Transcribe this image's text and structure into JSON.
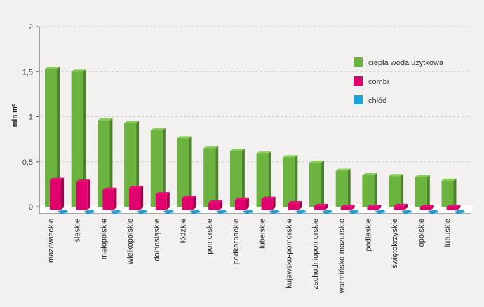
{
  "chart_data": {
    "type": "bar",
    "ylabel": "mln m²",
    "ylim": [
      0,
      2
    ],
    "yticks": [
      "0",
      "0,5",
      "1",
      "1,5",
      "2"
    ],
    "grid": true,
    "legend_position": "right",
    "categories": [
      "mazowieckie",
      "śląskie",
      "małopolskie",
      "wielkopolskie",
      "dolnośląskie",
      "łódzkie",
      "pomorskie",
      "podkarpackie",
      "lubelskie",
      "kujawsko-pomorskie",
      "zachodniopomorskie",
      "warmińsko-mazurskie",
      "podlaskie",
      "świętokrzyskie",
      "opolskie",
      "lubuskie"
    ],
    "series": [
      {
        "name": "ciepła woda użytkowa",
        "color": "#6db33f",
        "values": [
          1.53,
          1.5,
          0.96,
          0.93,
          0.85,
          0.76,
          0.65,
          0.62,
          0.59,
          0.55,
          0.49,
          0.4,
          0.35,
          0.34,
          0.33,
          0.29
        ]
      },
      {
        "name": "combi",
        "color": "#e2006e",
        "values": [
          0.33,
          0.31,
          0.22,
          0.24,
          0.17,
          0.13,
          0.08,
          0.11,
          0.12,
          0.07,
          0.04,
          0.03,
          0.03,
          0.04,
          0.03,
          0.03
        ]
      },
      {
        "name": "chłód",
        "color": "#19a3d6",
        "values": [
          0.005,
          0.005,
          0.005,
          0.005,
          0.005,
          0.005,
          0.005,
          0.005,
          0.005,
          0.005,
          0.005,
          0.005,
          0.005,
          0.005,
          0.005,
          0.005
        ]
      }
    ]
  }
}
